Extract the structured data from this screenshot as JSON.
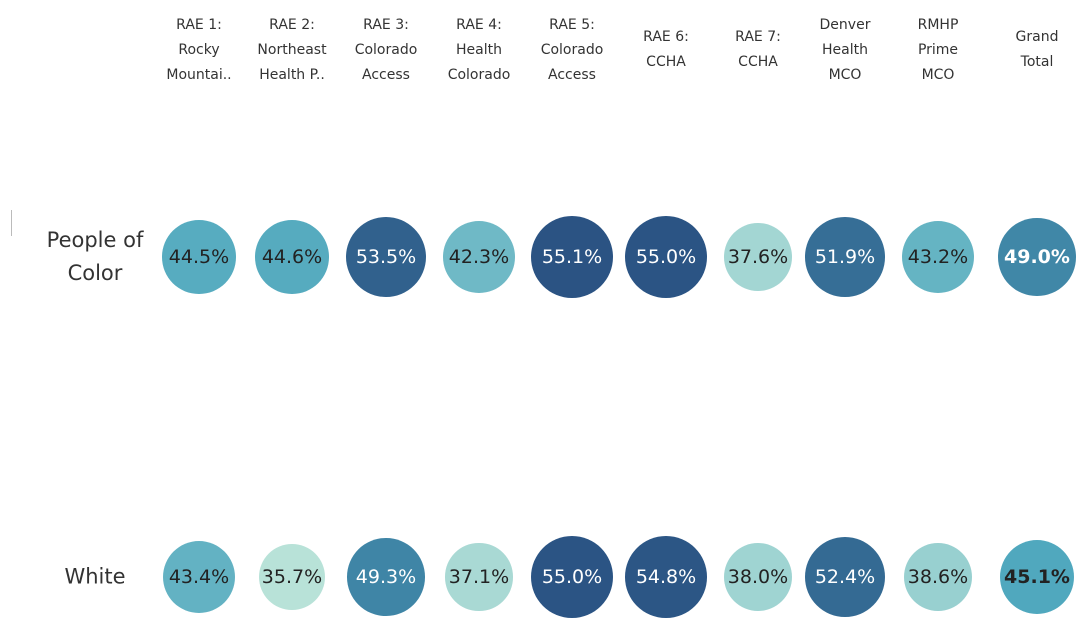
{
  "chart_data": {
    "type": "bubble-matrix",
    "categories": [
      [
        "RAE 1:",
        "Rocky",
        "Mountai.."
      ],
      [
        "RAE 2:",
        "Northeast",
        "Health P.."
      ],
      [
        "RAE 3:",
        "Colorado",
        "Access"
      ],
      [
        "RAE 4:",
        "Health",
        "Colorado"
      ],
      [
        "RAE 5:",
        "Colorado",
        "Access"
      ],
      [
        "RAE 6:",
        "CCHA"
      ],
      [
        "RAE 7:",
        "CCHA"
      ],
      [
        "Denver",
        "Health",
        "MCO"
      ],
      [
        "RMHP",
        "Prime",
        "MCO"
      ],
      [
        "Grand",
        "Total"
      ]
    ],
    "series": [
      {
        "name": "People of Color",
        "values": [
          44.5,
          44.6,
          53.5,
          42.3,
          55.1,
          55.0,
          37.6,
          51.9,
          43.2,
          49.0
        ],
        "value_labels": [
          "44.5%",
          "44.6%",
          "53.5%",
          "42.3%",
          "55.1%",
          "55.0%",
          "37.6%",
          "51.9%",
          "43.2%",
          "49.0%"
        ]
      },
      {
        "name": "White",
        "values": [
          43.4,
          35.7,
          49.3,
          37.1,
          55.0,
          54.8,
          38.0,
          52.4,
          38.6,
          45.1
        ],
        "value_labels": [
          "43.4%",
          "35.7%",
          "49.3%",
          "37.1%",
          "55.0%",
          "54.8%",
          "38.0%",
          "52.4%",
          "38.6%",
          "45.1%"
        ]
      }
    ],
    "colors": [
      "#b8e2d8",
      "#4da6bd",
      "#2b5383"
    ]
  }
}
